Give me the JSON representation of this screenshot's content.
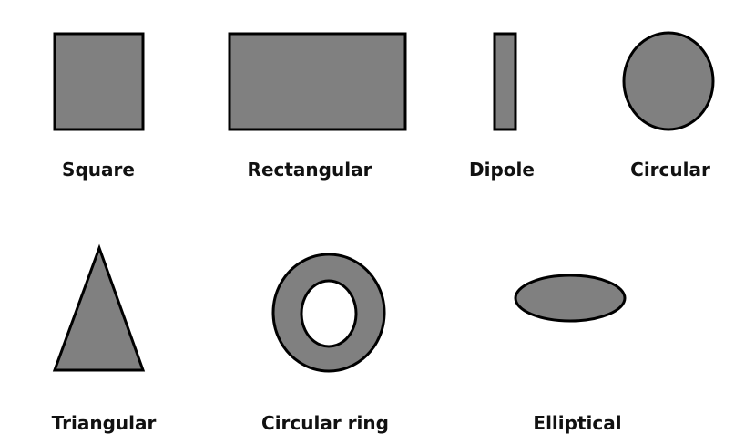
{
  "colors": {
    "shape_fill": "#808080",
    "shape_stroke": "#000000",
    "background": "#ffffff",
    "text": "#111111"
  },
  "shapes": [
    {
      "kind": "square",
      "label": "Square"
    },
    {
      "kind": "rectangle",
      "label": "Rectangular"
    },
    {
      "kind": "dipole",
      "label": "Dipole"
    },
    {
      "kind": "circle",
      "label": "Circular"
    },
    {
      "kind": "triangle",
      "label": "Triangular"
    },
    {
      "kind": "ring",
      "label": "Circular ring"
    },
    {
      "kind": "ellipse",
      "label": "Elliptical"
    }
  ]
}
